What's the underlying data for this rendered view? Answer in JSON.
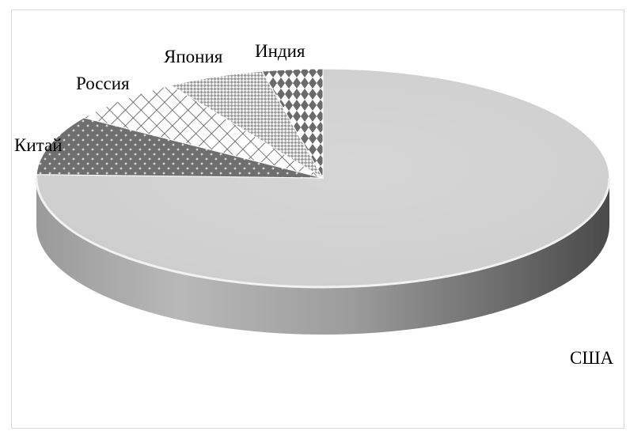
{
  "chart_data": {
    "type": "pie",
    "style": "3d",
    "title": "",
    "legend": "none",
    "slices": [
      {
        "label": "США",
        "value": 75.5,
        "pattern": "solid"
      },
      {
        "label": "Китай",
        "value": 8.8,
        "pattern": "dots"
      },
      {
        "label": "Россия",
        "value": 6.8,
        "pattern": "crosshatch"
      },
      {
        "label": "Япония",
        "value": 5.5,
        "pattern": "fine-check"
      },
      {
        "label": "Индия",
        "value": 3.4,
        "pattern": "diamonds"
      }
    ]
  }
}
